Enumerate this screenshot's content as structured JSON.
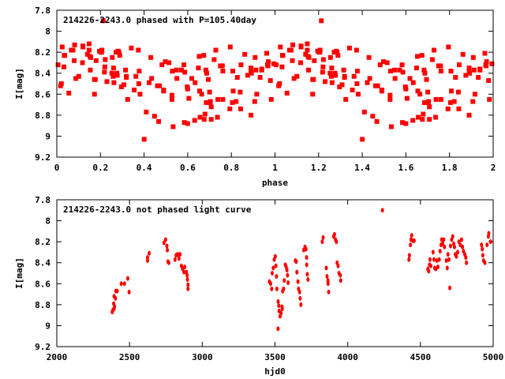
{
  "chart_data": [
    {
      "type": "scatter",
      "title": "214226-2243.0 phased with P=105.40day",
      "xlabel": "phase",
      "ylabel": "I[mag]",
      "xlim": [
        0,
        2
      ],
      "ylim": [
        7.8,
        9.2
      ],
      "y_inverted": true,
      "period_days": 105.4,
      "x_ticks": [
        "0",
        "0.2",
        "0.4",
        "0.6",
        "0.8",
        "1",
        "1.2",
        "1.4",
        "1.6",
        "1.8",
        "2"
      ],
      "y_ticks": [
        "7.8",
        "8",
        "8.2",
        "8.4",
        "8.6",
        "8.8",
        "9",
        "9.2"
      ],
      "grid": false,
      "marker_color": "#ff0000",
      "note": "points = observations of the second chart folded at the period, each shown at phase and phase+1"
    },
    {
      "type": "scatter",
      "title": "214226-2243.0 not phased light curve",
      "xlabel": "hjd0",
      "ylabel": "I[mag]",
      "xlim": [
        2000,
        5000
      ],
      "ylim": [
        7.8,
        9.2
      ],
      "y_inverted": true,
      "x_ticks": [
        "2000",
        "2500",
        "3000",
        "3500",
        "4000",
        "4500",
        "5000"
      ],
      "y_ticks": [
        "7.8",
        "8",
        "8.2",
        "8.4",
        "8.6",
        "8.8",
        "9",
        "9.2"
      ],
      "grid": false,
      "marker_color": "#ff0000",
      "points": [
        [
          2381,
          8.87
        ],
        [
          2386,
          8.85
        ],
        [
          2391,
          8.79
        ],
        [
          2394,
          8.84
        ],
        [
          2397,
          8.82
        ],
        [
          2394,
          8.72
        ],
        [
          2403,
          8.74
        ],
        [
          2406,
          8.67
        ],
        [
          2415,
          8.67
        ],
        [
          2443,
          8.6
        ],
        [
          2465,
          8.6
        ],
        [
          2488,
          8.55
        ],
        [
          2497,
          8.68
        ],
        [
          2624,
          8.35
        ],
        [
          2624,
          8.38
        ],
        [
          2635,
          8.31
        ],
        [
          2737,
          8.21
        ],
        [
          2748,
          8.18
        ],
        [
          2757,
          8.24
        ],
        [
          2760,
          8.28
        ],
        [
          2764,
          8.39
        ],
        [
          2770,
          8.4
        ],
        [
          2813,
          8.37
        ],
        [
          2820,
          8.33
        ],
        [
          2830,
          8.32
        ],
        [
          2840,
          8.36
        ],
        [
          2847,
          8.32
        ],
        [
          2857,
          8.43
        ],
        [
          2865,
          8.46
        ],
        [
          2874,
          8.49
        ],
        [
          2880,
          8.44
        ],
        [
          2891,
          8.49
        ],
        [
          2896,
          8.52
        ],
        [
          2898,
          8.56
        ],
        [
          2902,
          8.61
        ],
        [
          2902,
          8.65
        ],
        [
          3462,
          8.58
        ],
        [
          3470,
          8.6
        ],
        [
          3477,
          8.65
        ],
        [
          3481,
          8.5
        ],
        [
          3488,
          8.45
        ],
        [
          3495,
          8.37
        ],
        [
          3502,
          8.34
        ],
        [
          3506,
          8.43
        ],
        [
          3510,
          8.53
        ],
        [
          3513,
          8.65
        ],
        [
          3522,
          8.77
        ],
        [
          3526,
          8.81
        ],
        [
          3528,
          8.86
        ],
        [
          3535,
          8.91
        ],
        [
          3542,
          8.88
        ],
        [
          3521,
          9.03
        ],
        [
          3548,
          8.82
        ],
        [
          3550,
          8.84
        ],
        [
          3553,
          8.67
        ],
        [
          3559,
          8.65
        ],
        [
          3564,
          8.57
        ],
        [
          3571,
          8.42
        ],
        [
          3577,
          8.44
        ],
        [
          3582,
          8.47
        ],
        [
          3586,
          8.52
        ],
        [
          3590,
          8.59
        ],
        [
          3640,
          8.38
        ],
        [
          3646,
          8.39
        ],
        [
          3651,
          8.49
        ],
        [
          3658,
          8.58
        ],
        [
          3662,
          8.65
        ],
        [
          3669,
          8.68
        ],
        [
          3673,
          8.74
        ],
        [
          3678,
          8.8
        ],
        [
          3698,
          8.28
        ],
        [
          3706,
          8.25
        ],
        [
          3713,
          8.27
        ],
        [
          3717,
          8.35
        ],
        [
          3718,
          8.42
        ],
        [
          3722,
          8.51
        ],
        [
          3727,
          8.56
        ],
        [
          3825,
          8.2
        ],
        [
          3831,
          8.16
        ],
        [
          3853,
          8.45
        ],
        [
          3858,
          8.53
        ],
        [
          3864,
          8.57
        ],
        [
          3865,
          8.6
        ],
        [
          3869,
          8.68
        ],
        [
          3903,
          8.15
        ],
        [
          3909,
          8.13
        ],
        [
          3916,
          8.18
        ],
        [
          3922,
          8.2
        ],
        [
          3927,
          8.4
        ],
        [
          3934,
          8.43
        ],
        [
          3940,
          8.5
        ],
        [
          3949,
          8.52
        ],
        [
          3952,
          8.57
        ],
        [
          4239,
          7.9
        ],
        [
          4421,
          8.37
        ],
        [
          4424,
          8.33
        ],
        [
          4431,
          8.23
        ],
        [
          4435,
          8.18
        ],
        [
          4440,
          8.14
        ],
        [
          4448,
          8.19
        ],
        [
          4457,
          8.19
        ],
        [
          4551,
          8.46
        ],
        [
          4557,
          8.48
        ],
        [
          4562,
          8.42
        ],
        [
          4566,
          8.37
        ],
        [
          4571,
          8.43
        ],
        [
          4587,
          8.3
        ],
        [
          4593,
          8.37
        ],
        [
          4598,
          8.45
        ],
        [
          4606,
          8.46
        ],
        [
          4613,
          8.38
        ],
        [
          4620,
          8.44
        ],
        [
          4629,
          8.37
        ],
        [
          4635,
          8.29
        ],
        [
          4642,
          8.23
        ],
        [
          4646,
          8.18
        ],
        [
          4653,
          8.22
        ],
        [
          4660,
          8.18
        ],
        [
          4665,
          8.25
        ],
        [
          4678,
          8.38
        ],
        [
          4684,
          8.45
        ],
        [
          4689,
          8.32
        ],
        [
          4696,
          8.37
        ],
        [
          4702,
          8.64
        ],
        [
          4707,
          8.24
        ],
        [
          4715,
          8.18
        ],
        [
          4722,
          8.15
        ],
        [
          4729,
          8.22
        ],
        [
          4734,
          8.25
        ],
        [
          4740,
          8.32
        ],
        [
          4747,
          8.34
        ],
        [
          4756,
          8.3
        ],
        [
          4765,
          8.2
        ],
        [
          4774,
          8.23
        ],
        [
          4783,
          8.18
        ],
        [
          4789,
          8.25
        ],
        [
          4796,
          8.29
        ],
        [
          4805,
          8.32
        ],
        [
          4812,
          8.35
        ],
        [
          4816,
          8.4
        ],
        [
          4920,
          8.23
        ],
        [
          4925,
          8.27
        ],
        [
          4929,
          8.33
        ],
        [
          4934,
          8.38
        ],
        [
          4943,
          8.4
        ],
        [
          4958,
          8.23
        ],
        [
          4967,
          8.15
        ],
        [
          4970,
          8.12
        ],
        [
          4983,
          8.2
        ]
      ]
    }
  ]
}
